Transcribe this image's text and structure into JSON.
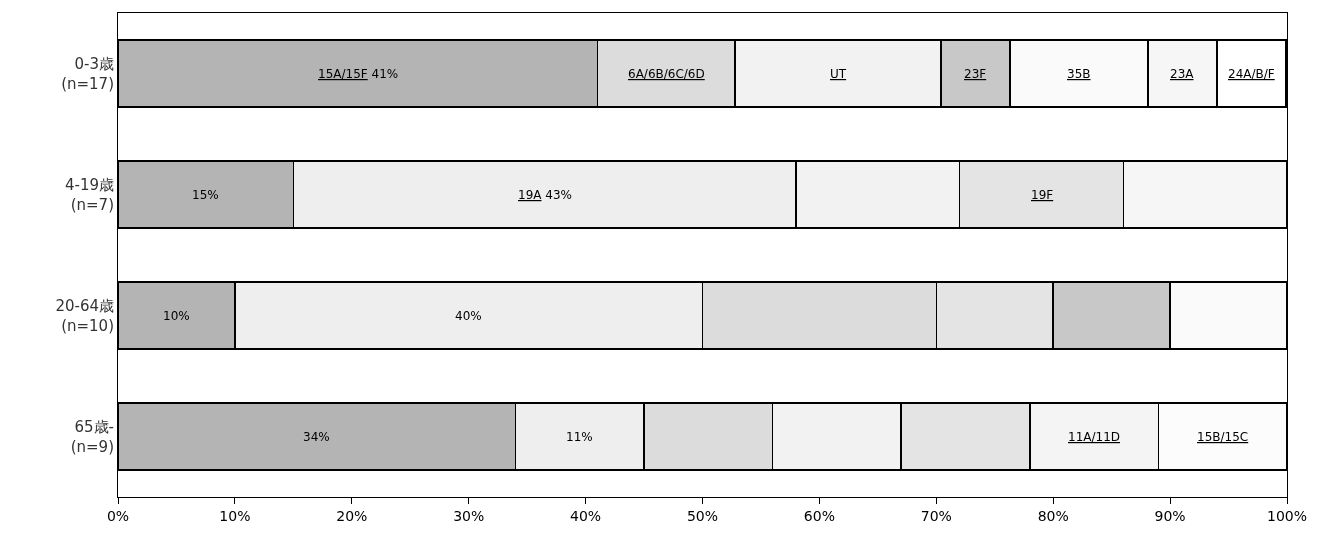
{
  "chart_data": {
    "type": "bar",
    "orientation": "horizontal",
    "stacked": true,
    "categories": [
      "0-3歳\n(n=17)",
      "4-19歳\n(n=7)",
      "20-64歳\n(n=10)",
      "65歳-\n(n=9)"
    ],
    "series": [
      {
        "name": "15A/15F",
        "color": "#b4b4b4",
        "values": [
          41,
          15,
          10,
          34
        ],
        "value_labels": [
          "41%",
          "15%",
          "10%",
          "34%"
        ]
      },
      {
        "name": "19A",
        "color": "#eeeeee",
        "values": [
          null,
          43,
          40,
          11
        ],
        "value_labels": [
          null,
          "43%",
          "40%",
          "11%"
        ]
      },
      {
        "name": "6A/6B/6C/6D",
        "color": "#dcdcdc",
        "values": [
          11.8,
          null,
          20,
          11
        ]
      },
      {
        "name": "UT",
        "color": "#f2f2f2",
        "values": [
          17.6,
          14,
          null,
          11
        ]
      },
      {
        "name": "19F",
        "color": "#e4e4e4",
        "values": [
          null,
          14,
          10,
          11
        ]
      },
      {
        "name": "23F",
        "color": "#c8c8c8",
        "values": [
          5.9,
          null,
          10,
          null
        ]
      },
      {
        "name": "35B",
        "color": "#fafafa",
        "values": [
          11.8,
          null,
          10,
          null
        ]
      },
      {
        "name": "23A",
        "color": "#f6f6f6",
        "values": [
          5.9,
          14,
          null,
          null
        ]
      },
      {
        "name": "11A/11D",
        "color": "#f4f4f4",
        "values": [
          null,
          null,
          null,
          11
        ]
      },
      {
        "name": "15B/15C",
        "color": "#fcfcfc",
        "values": [
          null,
          null,
          null,
          11
        ]
      },
      {
        "name": "24A/B/F",
        "color": "#ffffff",
        "values": [
          5.9,
          null,
          null,
          null
        ]
      }
    ],
    "xlim": [
      0,
      100
    ],
    "xticks": [
      {
        "value": 0,
        "label": "0%"
      },
      {
        "value": 10,
        "label": "10%"
      },
      {
        "value": 20,
        "label": "20%"
      },
      {
        "value": 30,
        "label": "30%"
      },
      {
        "value": 40,
        "label": "40%"
      },
      {
        "value": 50,
        "label": "50%"
      },
      {
        "value": 60,
        "label": "60%"
      },
      {
        "value": 70,
        "label": "70%"
      },
      {
        "value": 80,
        "label": "80%"
      },
      {
        "value": 90,
        "label": "90%"
      },
      {
        "value": 100,
        "label": "100%"
      }
    ],
    "legend": false
  }
}
